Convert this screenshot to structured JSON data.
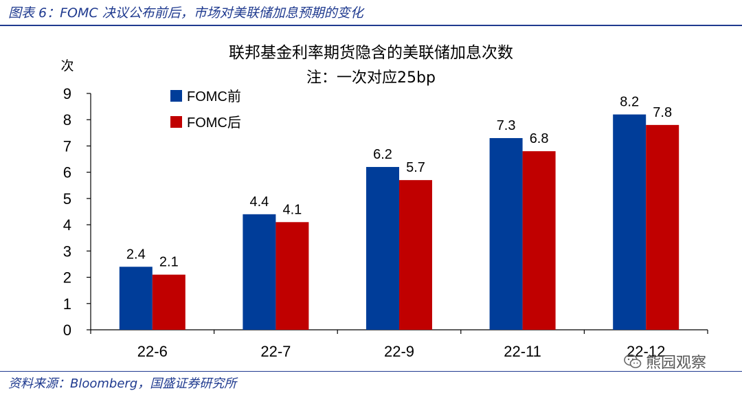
{
  "header": {
    "caption": "图表 6：FOMC 决议公布前后，市场对美联储加息预期的变化"
  },
  "footer": {
    "source": "资料来源：Bloomberg，国盛证券研究所"
  },
  "watermark": {
    "text": "熊园观察",
    "icon": "wechat-icon"
  },
  "chart_data": {
    "type": "bar",
    "title": "联邦基金利率期货隐含的美联储加息次数",
    "subtitle": "注：一次对应25bp",
    "ylabel": "次",
    "xlabel": "",
    "ylim": [
      0,
      9
    ],
    "yticks": [
      0,
      1,
      2,
      3,
      4,
      5,
      6,
      7,
      8,
      9
    ],
    "categories": [
      "22-6",
      "22-7",
      "22-9",
      "22-11",
      "22-12"
    ],
    "series": [
      {
        "name": "FOMC前",
        "color": "#003d99",
        "values": [
          2.4,
          4.4,
          6.2,
          7.3,
          8.2
        ]
      },
      {
        "name": "FOMC后",
        "color": "#c00000",
        "values": [
          2.1,
          4.1,
          5.7,
          6.8,
          7.8
        ]
      }
    ],
    "legend_position": "top-left",
    "grid": false
  }
}
